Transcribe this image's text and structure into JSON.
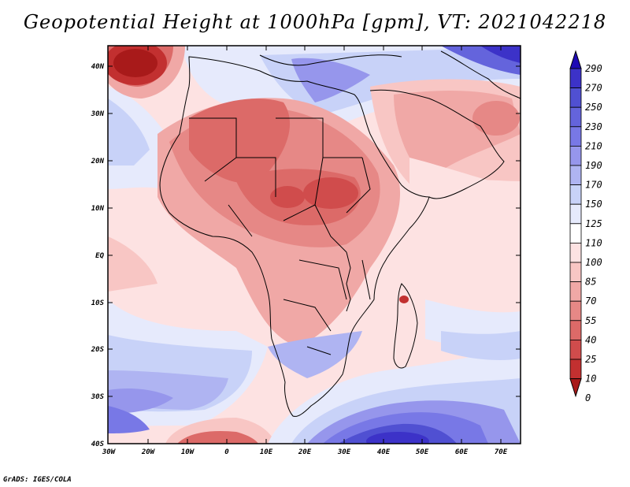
{
  "title": "Geopotential Height at 1000hPa [gpm], VT: 2021042218",
  "credit": "GrADS: IGES/COLA",
  "lat_labels": [
    "40N",
    "30N",
    "20N",
    "10N",
    "EQ",
    "10S",
    "20S",
    "30S",
    "40S"
  ],
  "lon_labels": [
    "30W",
    "20W",
    "10W",
    "0",
    "10E",
    "20E",
    "30E",
    "40E",
    "50E",
    "60E",
    "70E"
  ],
  "colorbar": {
    "levels": [
      "290",
      "270",
      "250",
      "230",
      "210",
      "190",
      "170",
      "150",
      "125",
      "110",
      "100",
      "85",
      "70",
      "55",
      "40",
      "25",
      "10",
      "0"
    ],
    "colors": [
      "#1e0ab4",
      "#3c32c8",
      "#5050d2",
      "#6464dc",
      "#7878e6",
      "#9696ec",
      "#afb4f2",
      "#c8d2f8",
      "#e6eafc",
      "#ffffff",
      "#fde2e2",
      "#f8c6c4",
      "#f0a8a6",
      "#e68886",
      "#dc6a68",
      "#d04c4c",
      "#c23030",
      "#a81a1a"
    ]
  }
}
